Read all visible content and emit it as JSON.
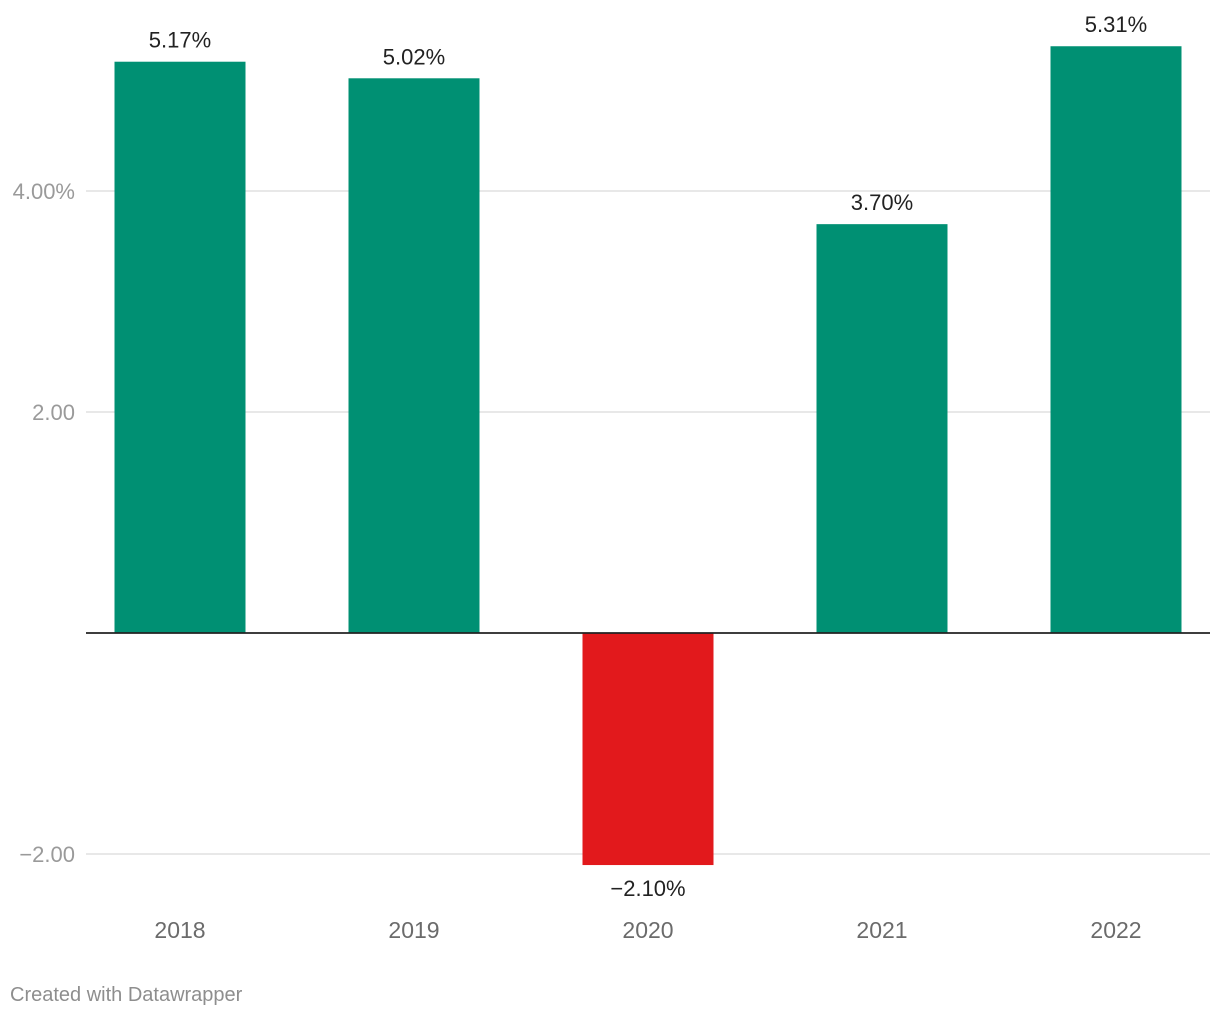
{
  "chart_data": {
    "type": "bar",
    "categories": [
      "2018",
      "2019",
      "2020",
      "2021",
      "2022"
    ],
    "values": [
      5.17,
      5.02,
      -2.1,
      3.7,
      5.31
    ],
    "value_labels": [
      "5.17%",
      "5.02%",
      "−2.10%",
      "3.70%",
      "5.31%"
    ],
    "y_ticks": [
      {
        "value": 4,
        "label": "4.00%"
      },
      {
        "value": 2,
        "label": "2.00"
      },
      {
        "value": -2,
        "label": "−2.00"
      }
    ],
    "ylim": [
      -2.1,
      5.31
    ],
    "grid": true,
    "colors": {
      "positive": "#009073",
      "negative": "#e2191c"
    },
    "title": "",
    "xlabel": "",
    "ylabel": ""
  },
  "footer": {
    "credit": "Created with Datawrapper"
  }
}
